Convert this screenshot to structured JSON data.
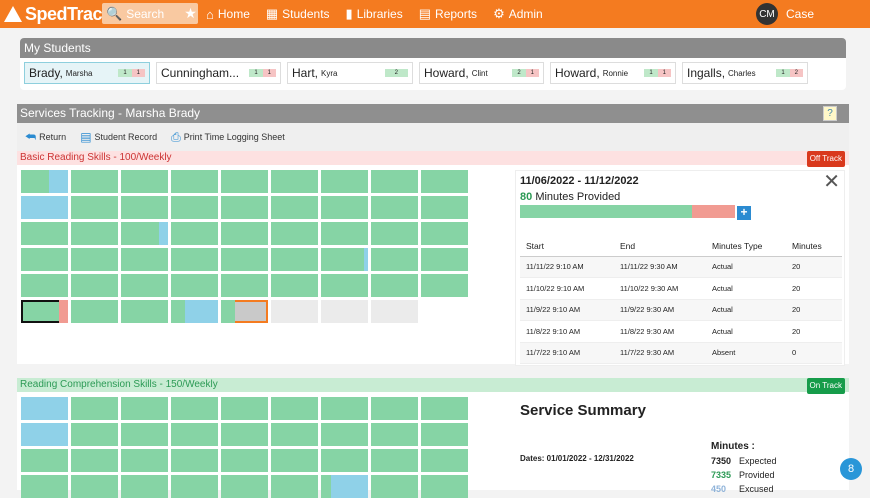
{
  "app": {
    "logo": "SpedTrack"
  },
  "search": {
    "placeholder": "Search"
  },
  "nav": [
    {
      "label": "Home",
      "icon": "home-icon"
    },
    {
      "label": "Students",
      "icon": "students-icon"
    },
    {
      "label": "Libraries",
      "icon": "book-icon"
    },
    {
      "label": "Reports",
      "icon": "clipboard-icon"
    },
    {
      "label": "Admin",
      "icon": "gear-icon"
    }
  ],
  "user": {
    "initials": "CM",
    "name": "Case"
  },
  "my_students": {
    "title": "My Students",
    "items": [
      {
        "last": "Brady,",
        "first": "Marsha",
        "b1": "1",
        "b2": "1",
        "active": true
      },
      {
        "last": "Cunningham...",
        "first": "",
        "b1": "1",
        "b2": "1",
        "active": false
      },
      {
        "last": "Hart,",
        "first": "Kyra",
        "b1": "2",
        "b2": "",
        "active": false
      },
      {
        "last": "Howard,",
        "first": "Clint",
        "b1": "2",
        "b2": "1",
        "active": false
      },
      {
        "last": "Howard,",
        "first": "Ronnie",
        "b1": "1",
        "b2": "1",
        "active": false
      },
      {
        "last": "Ingalls,",
        "first": "Charles",
        "b1": "1",
        "b2": "2",
        "active": false
      }
    ]
  },
  "tracking": {
    "title": "Services Tracking - Marsha Brady",
    "help": "?",
    "toolbar": {
      "return": "Return",
      "student_record": "Student Record",
      "print": "Print Time Logging Sheet"
    },
    "service1": {
      "name": "Basic Reading Skills - 100/Weekly",
      "status": "Off Track"
    },
    "detail": {
      "range": "11/06/2022 - 11/12/2022",
      "minutes": "80",
      "minutes_label": "Minutes Provided",
      "progress_fraction": 0.8,
      "headers": [
        "Start",
        "End",
        "Minutes Type",
        "Minutes"
      ],
      "rows": [
        [
          "11/11/22 9:10 AM",
          "11/11/22 9:30 AM",
          "Actual",
          "20"
        ],
        [
          "11/10/22 9:10 AM",
          "11/10/22 9:30 AM",
          "Actual",
          "20"
        ],
        [
          "11/9/22 9:10 AM",
          "11/9/22 9:30 AM",
          "Actual",
          "20"
        ],
        [
          "11/8/22 9:10 AM",
          "11/8/22 9:30 AM",
          "Actual",
          "20"
        ],
        [
          "11/7/22 9:10 AM",
          "11/7/22 9:30 AM",
          "Absent",
          "0"
        ]
      ]
    },
    "service2": {
      "name": "Reading Comprehension Skills - 150/Weekly",
      "status": "On Track"
    }
  },
  "summary": {
    "title": "Service Summary",
    "dates": "Dates: 01/01/2022 - 12/31/2022",
    "minutes_head": "Minutes :",
    "expected_value": "7350",
    "expected_label": "Expected",
    "provided_value": "7335",
    "provided_label": "Provided",
    "excused_value": "450",
    "excused_label": "Excused"
  },
  "help_count": "8",
  "colors": {
    "brand": "#f47b20",
    "green": "#86d4a5",
    "blue": "#8fd1e8",
    "red": "#f19b92"
  }
}
